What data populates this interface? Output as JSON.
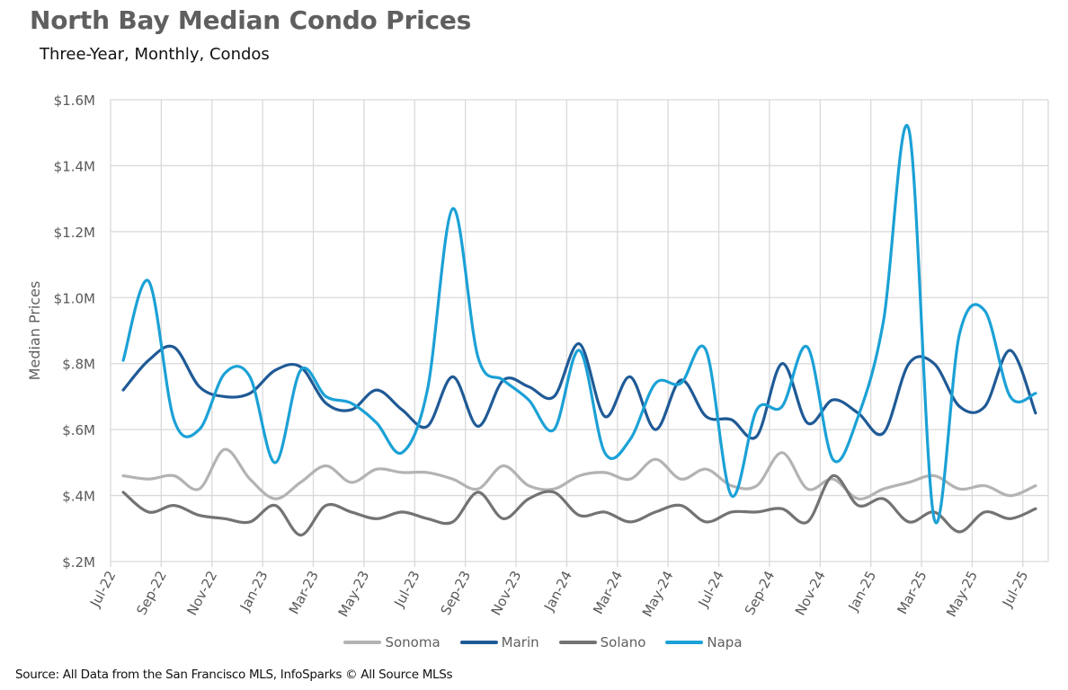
{
  "chart_data": {
    "type": "line",
    "title": "North Bay Median Condo Prices",
    "subtitle": "Three-Year, Monthly, Condos",
    "xlabel": "",
    "ylabel": "Median Prices",
    "ylim": [
      0.2,
      1.6
    ],
    "yticks": [
      0.2,
      0.4,
      0.6,
      0.8,
      1.0,
      1.2,
      1.4,
      1.6
    ],
    "ytick_labels": [
      "$.2M",
      "$.4M",
      "$.6M",
      "$.8M",
      "$1.0M",
      "$1.2M",
      "$1.4M",
      "$1.6M"
    ],
    "units": "millions USD",
    "grid": true,
    "smooth": true,
    "legend_position": "bottom",
    "x": [
      "Jul-22",
      "Aug-22",
      "Sep-22",
      "Oct-22",
      "Nov-22",
      "Dec-22",
      "Jan-23",
      "Feb-23",
      "Mar-23",
      "Apr-23",
      "May-23",
      "Jun-23",
      "Jul-23",
      "Aug-23",
      "Sep-23",
      "Oct-23",
      "Nov-23",
      "Dec-23",
      "Jan-24",
      "Feb-24",
      "Mar-24",
      "Apr-24",
      "May-24",
      "Jun-24",
      "Jul-24",
      "Aug-24",
      "Sep-24",
      "Oct-24",
      "Nov-24",
      "Dec-24",
      "Jan-25",
      "Feb-25",
      "Mar-25",
      "Apr-25",
      "May-25",
      "Jun-25",
      "Jul-25"
    ],
    "xtick_labels": [
      "Jul-22",
      "Sep-22",
      "Nov-22",
      "Jan-23",
      "Mar-23",
      "May-23",
      "Jul-23",
      "Sep-23",
      "Nov-23",
      "Jan-24",
      "Mar-24",
      "May-24",
      "Jul-24",
      "Sep-24",
      "Nov-24",
      "Jan-25",
      "Mar-25",
      "May-25",
      "Jul-25"
    ],
    "series": [
      {
        "name": "Sonoma",
        "color": "#b3b3b3",
        "values": [
          0.46,
          0.45,
          0.46,
          0.42,
          0.54,
          0.45,
          0.39,
          0.44,
          0.49,
          0.44,
          0.48,
          0.47,
          0.47,
          0.45,
          0.42,
          0.49,
          0.43,
          0.42,
          0.46,
          0.47,
          0.45,
          0.51,
          0.45,
          0.48,
          0.43,
          0.43,
          0.53,
          0.42,
          0.45,
          0.39,
          0.42,
          0.44,
          0.46,
          0.42,
          0.43,
          0.4,
          0.43
        ]
      },
      {
        "name": "Marin",
        "color": "#1f5a96",
        "values": [
          0.72,
          0.81,
          0.85,
          0.73,
          0.7,
          0.71,
          0.78,
          0.79,
          0.68,
          0.66,
          0.72,
          0.66,
          0.61,
          0.76,
          0.61,
          0.75,
          0.73,
          0.7,
          0.86,
          0.64,
          0.76,
          0.6,
          0.75,
          0.64,
          0.63,
          0.58,
          0.8,
          0.62,
          0.69,
          0.65,
          0.59,
          0.8,
          0.8,
          0.67,
          0.67,
          0.84,
          0.65
        ]
      },
      {
        "name": "Solano",
        "color": "#737373",
        "values": [
          0.41,
          0.35,
          0.37,
          0.34,
          0.33,
          0.32,
          0.37,
          0.28,
          0.37,
          0.35,
          0.33,
          0.35,
          0.33,
          0.32,
          0.41,
          0.33,
          0.39,
          0.41,
          0.34,
          0.35,
          0.32,
          0.35,
          0.37,
          0.32,
          0.35,
          0.35,
          0.36,
          0.32,
          0.46,
          0.37,
          0.39,
          0.32,
          0.35,
          0.29,
          0.35,
          0.33,
          0.36
        ]
      },
      {
        "name": "Napa",
        "color": "#1ba1d6",
        "values": [
          0.81,
          1.05,
          0.63,
          0.6,
          0.77,
          0.76,
          0.5,
          0.78,
          0.7,
          0.68,
          0.62,
          0.53,
          0.72,
          1.27,
          0.82,
          0.75,
          0.69,
          0.6,
          0.84,
          0.53,
          0.57,
          0.74,
          0.74,
          0.84,
          0.4,
          0.66,
          0.67,
          0.85,
          0.51,
          0.64,
          0.93,
          1.51,
          0.33,
          0.89,
          0.96,
          0.7,
          0.71
        ]
      }
    ]
  },
  "source": "Source: All Data from the San Francisco MLS, InfoSparks © All Source MLSs"
}
